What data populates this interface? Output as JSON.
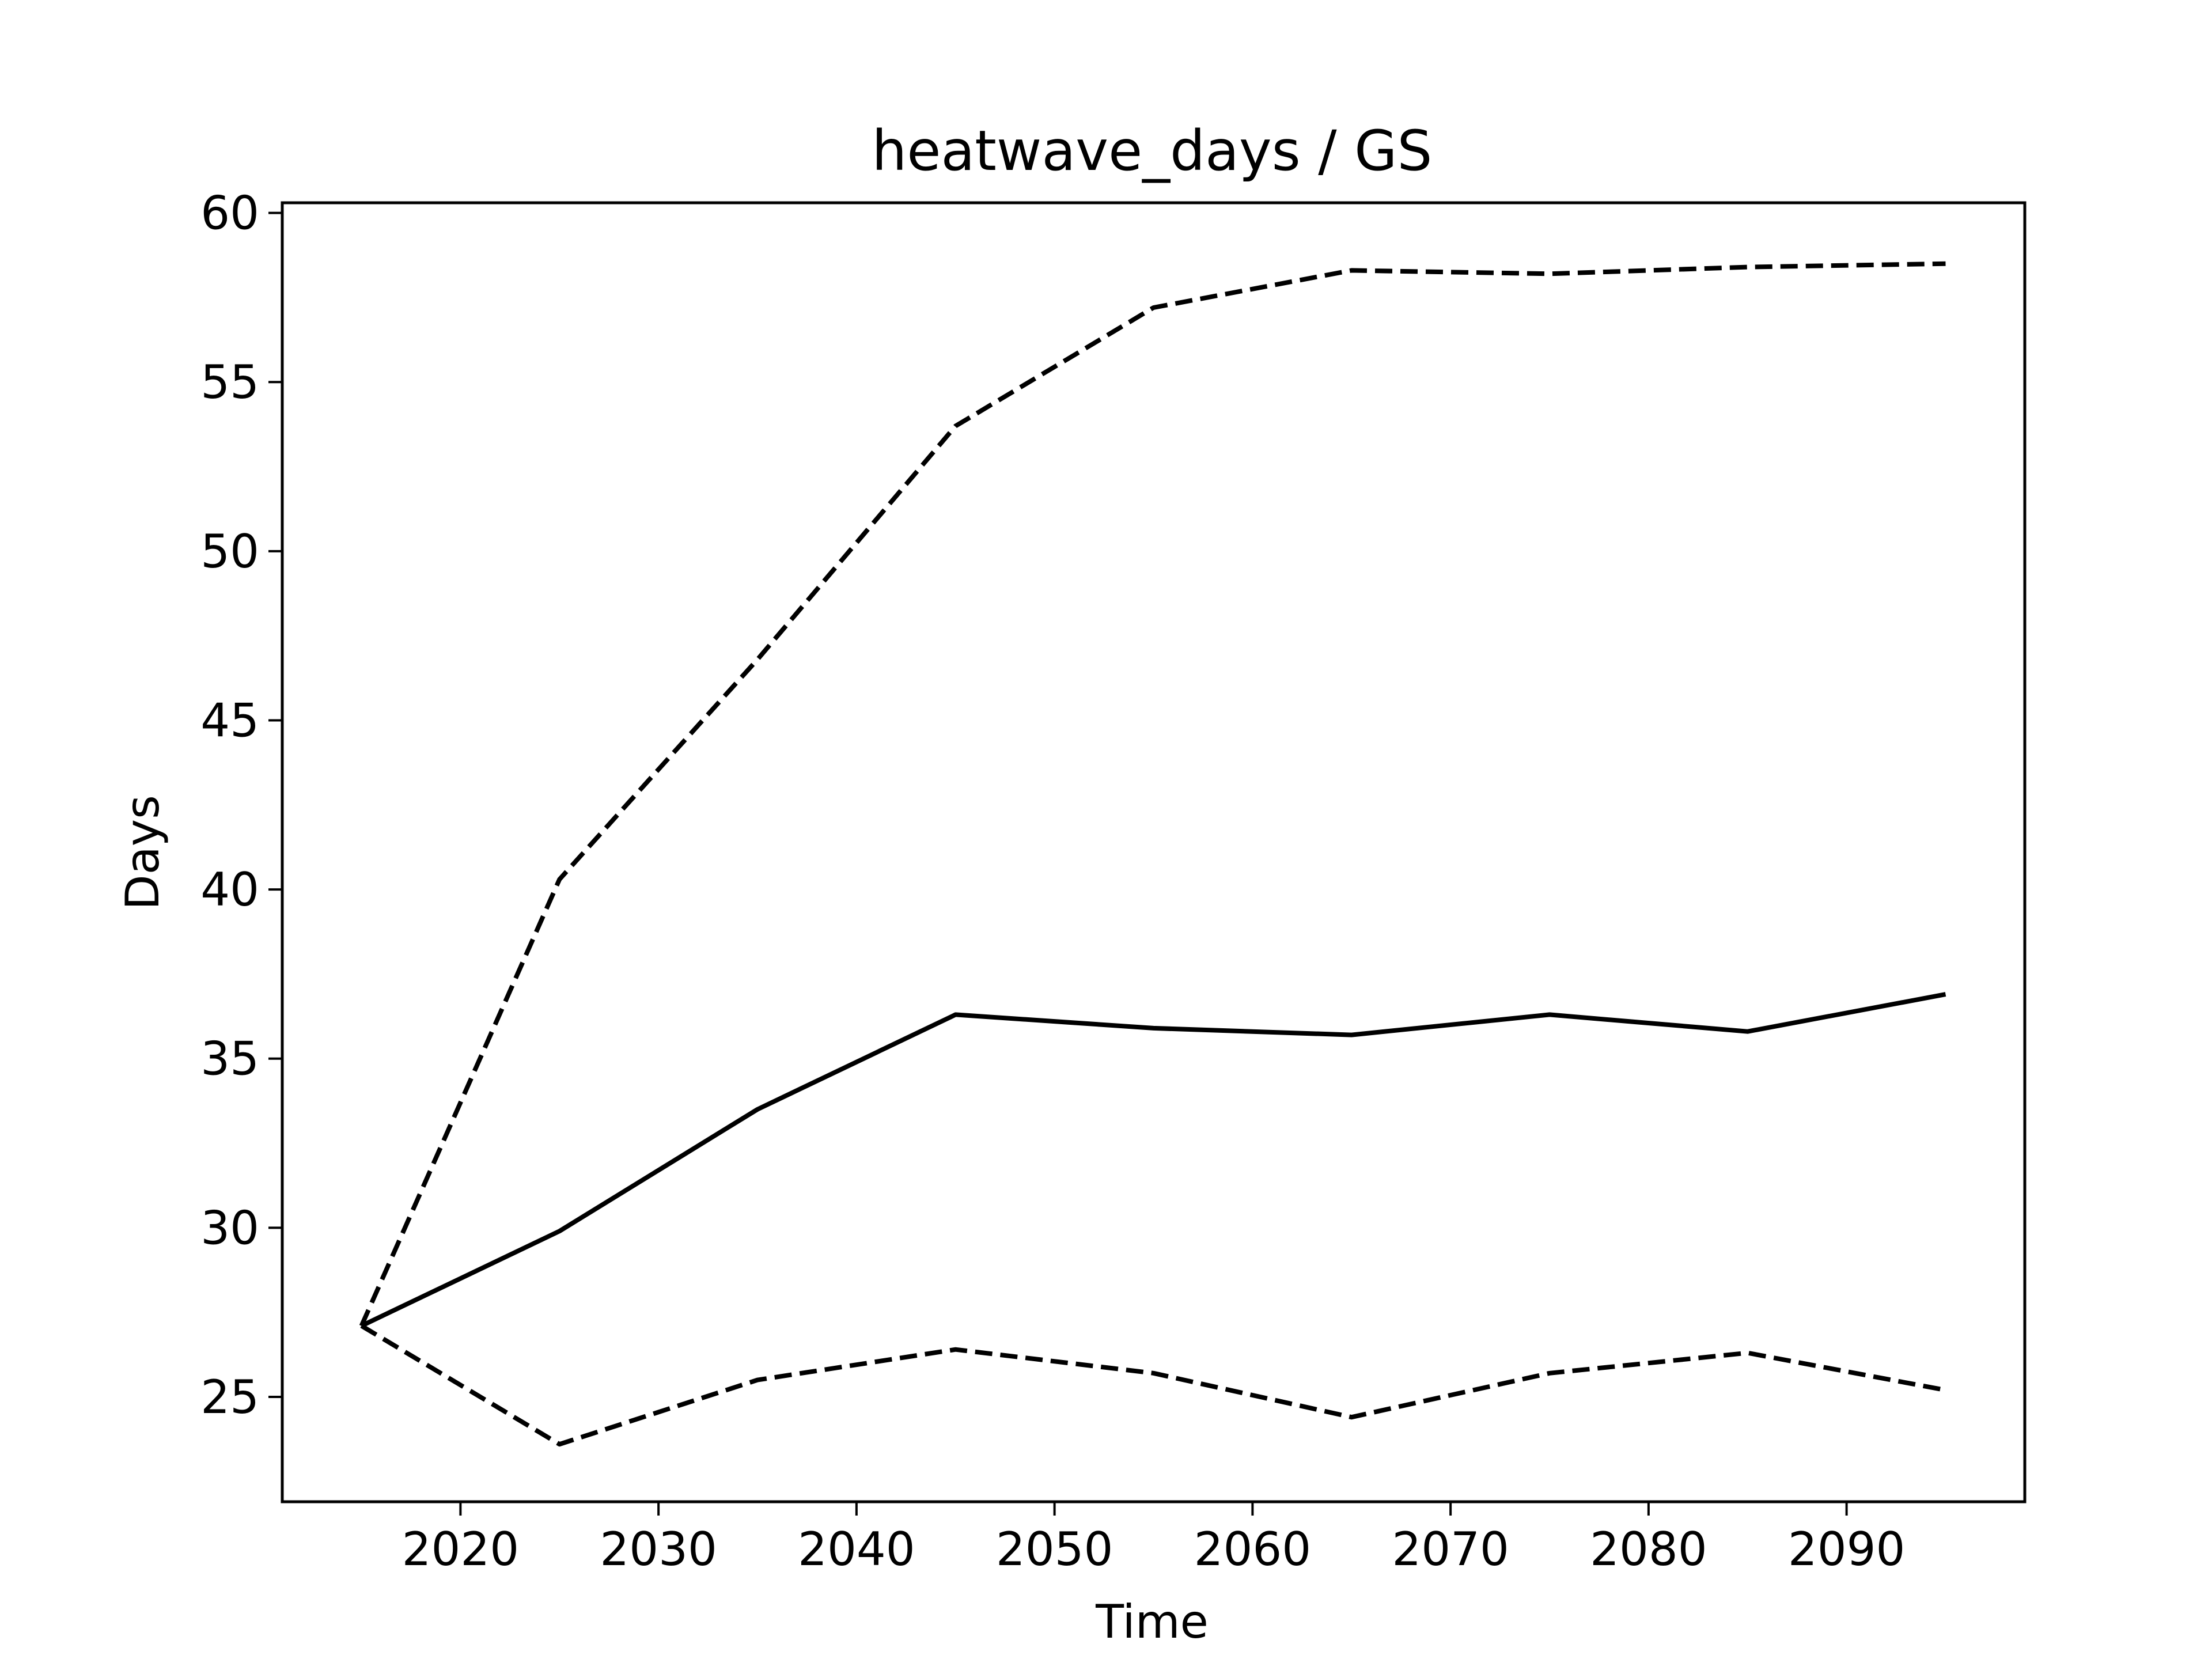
{
  "chart_data": {
    "type": "line",
    "title": "heatwave_days / GS",
    "xlabel": "Time",
    "ylabel": "Days",
    "xlim": [
      2011,
      2099
    ],
    "ylim": [
      21.9,
      60.3
    ],
    "xticks": [
      2020,
      2030,
      2040,
      2050,
      2060,
      2070,
      2080,
      2090
    ],
    "yticks": [
      25,
      30,
      35,
      40,
      45,
      50,
      55,
      60
    ],
    "grid": false,
    "x": [
      2015,
      2025,
      2035,
      2045,
      2055,
      2065,
      2075,
      2085,
      2095
    ],
    "series": [
      {
        "style": "solid",
        "color": "#000000",
        "values": [
          27.1,
          29.9,
          33.5,
          36.3,
          35.9,
          35.7,
          36.3,
          35.8,
          36.9
        ]
      },
      {
        "style": "dashed",
        "color": "#000000",
        "values": [
          27.1,
          40.3,
          46.8,
          53.7,
          57.2,
          58.3,
          58.2,
          58.4,
          58.5
        ]
      },
      {
        "style": "dashed",
        "color": "#000000",
        "values": [
          27.1,
          23.6,
          25.5,
          26.4,
          25.7,
          24.4,
          25.7,
          26.3,
          25.2
        ]
      }
    ]
  }
}
